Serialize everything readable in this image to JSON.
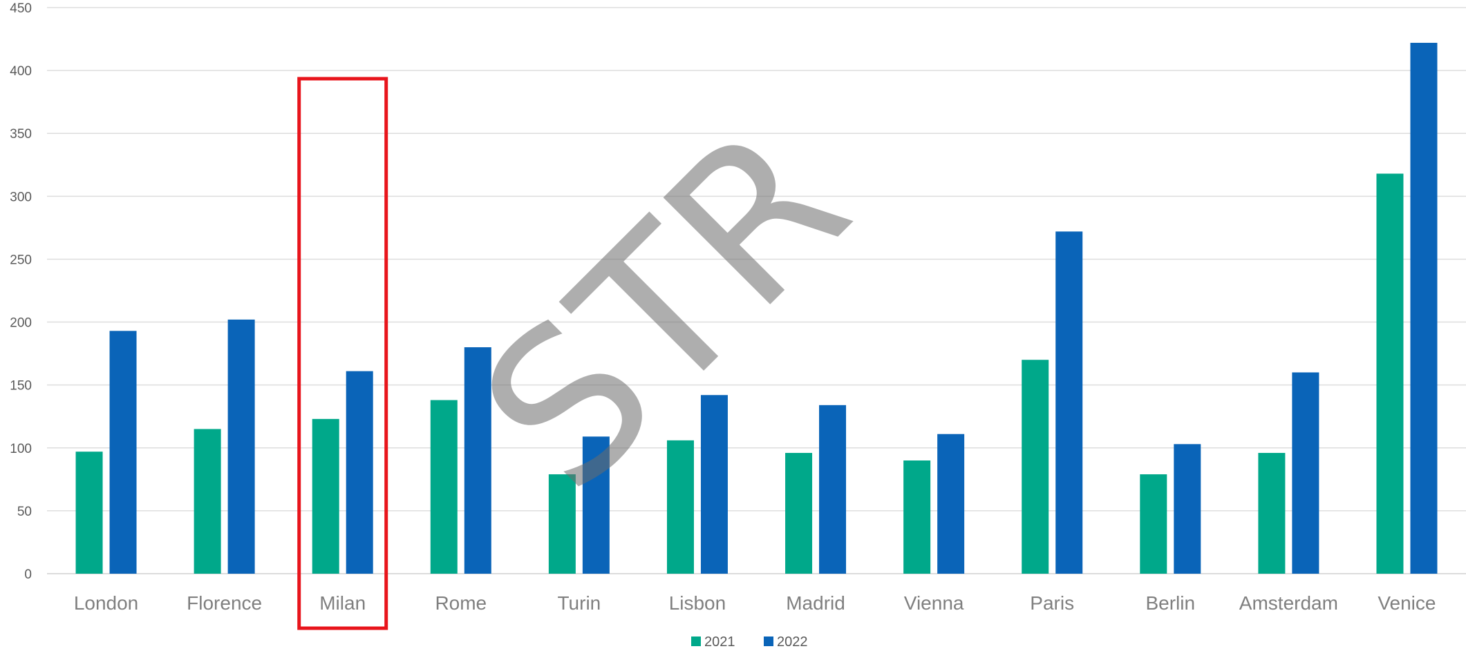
{
  "chart_data": {
    "type": "bar",
    "categories": [
      "London",
      "Florence",
      "Milan",
      "Rome",
      "Turin",
      "Lisbon",
      "Madrid",
      "Vienna",
      "Paris",
      "Berlin",
      "Amsterdam",
      "Venice"
    ],
    "series": [
      {
        "name": "2021",
        "color": "#00a88a",
        "values": [
          97,
          115,
          123,
          138,
          79,
          106,
          96,
          90,
          170,
          79,
          96,
          318
        ]
      },
      {
        "name": "2022",
        "color": "#0a64b8",
        "values": [
          193,
          202,
          161,
          180,
          109,
          142,
          134,
          111,
          272,
          103,
          160,
          422
        ]
      }
    ],
    "ylim": [
      0,
      450
    ],
    "yticks": [
      0,
      50,
      100,
      150,
      200,
      250,
      300,
      350,
      400,
      450
    ],
    "grid": true,
    "legend": "bottom-center",
    "highlighted_category": "Milan",
    "highlight_color": "#e8141b"
  },
  "watermark": "STR"
}
